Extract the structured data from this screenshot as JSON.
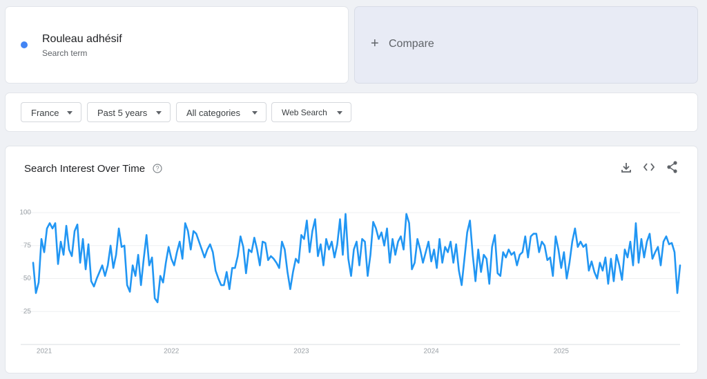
{
  "search_term": {
    "name": "Rouleau adhésif",
    "subtitle": "Search term"
  },
  "compare": "Compare",
  "filters": [
    "France",
    "Past 5 years",
    "All categories",
    "Web Search"
  ],
  "chart_data": {
    "type": "line",
    "title": "Search Interest Over Time",
    "color": "#2196f3",
    "grid": true,
    "ylim": [
      0,
      100
    ],
    "yticks": [
      25,
      50,
      75,
      100
    ],
    "categories": [
      null,
      null,
      null,
      null,
      "2021",
      null,
      null,
      null,
      null,
      null,
      null,
      null,
      null,
      null,
      null,
      null,
      null,
      null,
      null,
      null,
      null,
      null,
      null,
      null,
      null,
      null,
      null,
      null,
      null,
      null,
      null,
      null,
      null,
      null,
      null,
      null,
      null,
      null,
      null,
      null,
      null,
      null,
      null,
      null,
      null,
      null,
      null,
      null,
      null,
      null,
      "2022",
      null,
      null,
      null,
      null,
      null,
      null,
      null,
      null,
      null,
      null,
      null,
      null,
      null,
      null,
      null,
      null,
      null,
      null,
      null,
      null,
      null,
      null,
      null,
      null,
      null,
      null,
      null,
      null,
      null,
      null,
      null,
      null,
      null,
      null,
      null,
      null,
      null,
      null,
      null,
      null,
      null,
      null,
      null,
      null,
      null,
      null,
      "2023",
      null,
      null,
      null,
      null,
      null,
      null,
      null,
      null,
      null,
      null,
      null,
      null,
      null,
      null,
      null,
      null,
      null,
      null,
      null,
      null,
      null,
      null,
      null,
      null,
      null,
      null,
      null,
      null,
      null,
      null,
      null,
      null,
      null,
      null,
      null,
      null,
      null,
      null,
      null,
      null,
      null,
      null,
      null,
      null,
      null,
      null,
      "2024",
      null,
      null,
      null,
      null,
      null,
      null,
      null,
      null,
      null,
      null,
      null,
      null,
      null,
      null,
      null,
      null,
      null,
      null,
      null,
      null,
      null,
      null,
      null,
      null,
      null,
      null,
      null,
      null,
      null,
      null,
      null,
      null,
      null,
      null,
      null,
      null,
      null,
      null,
      null,
      null,
      null,
      null,
      null,
      null,
      null,
      null,
      "2025",
      null,
      null,
      null,
      null,
      null,
      null,
      null,
      null,
      null,
      null,
      null,
      null,
      null,
      null,
      null,
      null,
      null,
      null,
      null,
      null,
      null,
      null,
      null,
      null,
      null,
      null,
      null,
      null,
      null,
      null,
      null,
      null,
      null,
      null,
      null,
      null,
      null,
      null,
      null,
      null,
      null,
      null,
      null
    ],
    "values": [
      62,
      39,
      47,
      80,
      70,
      88,
      92,
      88,
      92,
      61,
      78,
      68,
      90,
      72,
      67,
      86,
      91,
      62,
      80,
      57,
      76,
      48,
      44,
      50,
      55,
      60,
      52,
      60,
      75,
      58,
      68,
      88,
      74,
      75,
      45,
      40,
      60,
      52,
      68,
      45,
      65,
      83,
      60,
      66,
      35,
      32,
      52,
      47,
      62,
      74,
      65,
      60,
      70,
      78,
      65,
      92,
      86,
      72,
      86,
      84,
      78,
      72,
      66,
      72,
      76,
      70,
      56,
      50,
      45,
      45,
      55,
      42,
      58,
      58,
      67,
      82,
      74,
      54,
      72,
      70,
      81,
      72,
      60,
      78,
      77,
      64,
      67,
      65,
      62,
      58,
      78,
      72,
      55,
      42,
      55,
      65,
      62,
      83,
      80,
      94,
      70,
      86,
      95,
      67,
      76,
      60,
      80,
      72,
      78,
      66,
      76,
      95,
      68,
      99,
      65,
      52,
      72,
      78,
      60,
      80,
      78,
      52,
      68,
      93,
      88,
      80,
      85,
      75,
      88,
      62,
      80,
      68,
      78,
      82,
      72,
      99,
      92,
      57,
      62,
      80,
      72,
      62,
      70,
      78,
      63,
      72,
      58,
      80,
      62,
      74,
      70,
      78,
      62,
      76,
      56,
      45,
      65,
      85,
      94,
      68,
      48,
      72,
      55,
      68,
      65,
      46,
      74,
      83,
      54,
      52,
      70,
      66,
      72,
      68,
      70,
      60,
      68,
      70,
      82,
      66,
      82,
      84,
      84,
      70,
      78,
      75,
      64,
      66,
      52,
      82,
      72,
      58,
      70,
      50,
      62,
      78,
      88,
      74,
      78,
      74,
      76,
      56,
      63,
      55,
      50,
      62,
      56,
      66,
      46,
      65,
      48,
      68,
      60,
      49,
      72,
      66,
      78,
      60,
      92,
      62,
      80,
      66,
      78,
      84,
      65,
      70,
      74,
      60,
      78,
      82,
      76,
      77,
      70,
      39,
      60
    ]
  }
}
